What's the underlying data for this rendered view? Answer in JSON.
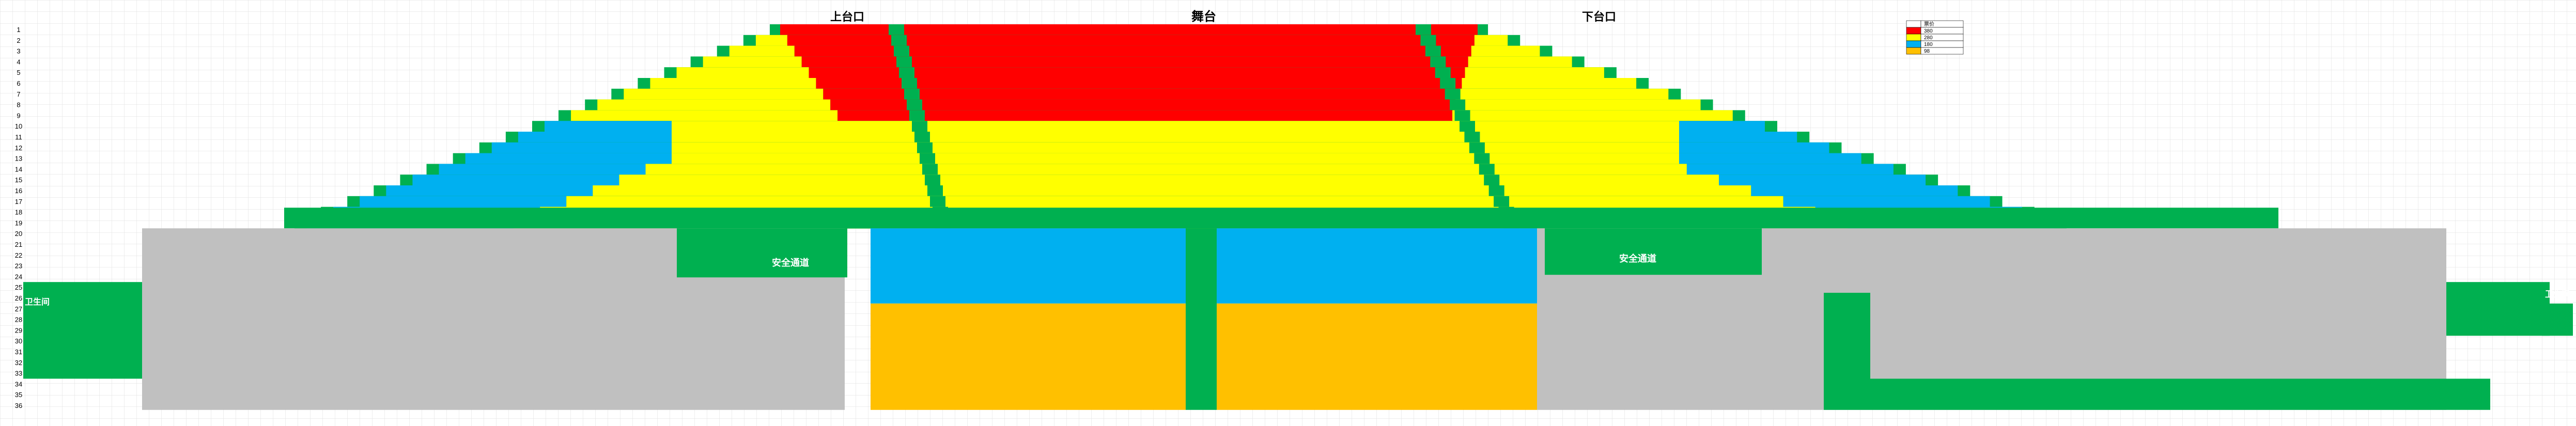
{
  "labels": {
    "stage": "舞台",
    "entrance_left": "上台口",
    "entrance_right": "下台口",
    "aisle_left": "安全通道",
    "aisle_right": "安全通道",
    "restroom_left": "卫生间",
    "restroom_right": "卫生间"
  },
  "legend": [
    {
      "label": "票价",
      "color": "#ffffff"
    },
    {
      "label": "380",
      "color": "#ff0000"
    },
    {
      "label": "280",
      "color": "#ffff00"
    },
    {
      "label": "180",
      "color": "#00b0f0"
    },
    {
      "label": "98",
      "color": "#ffc000"
    }
  ],
  "colors": {
    "premium": "#ff0000",
    "standard": "#ffff00",
    "economy": "#00b0f0",
    "budget": "#ffc000",
    "unavailable": "#c0c0c0",
    "structure": "#00b050",
    "grid": "#d9d9d9"
  },
  "rows": [
    "1",
    "2",
    "3",
    "4",
    "5",
    "6",
    "7",
    "8",
    "9",
    "10",
    "11",
    "12",
    "13",
    "14",
    "15",
    "16",
    "17",
    "18",
    "19",
    "20",
    "21",
    "22",
    "23",
    "24",
    "25",
    "26",
    "27",
    "28",
    "29",
    "30",
    "31",
    "32",
    "33",
    "34",
    "35",
    "36"
  ]
}
